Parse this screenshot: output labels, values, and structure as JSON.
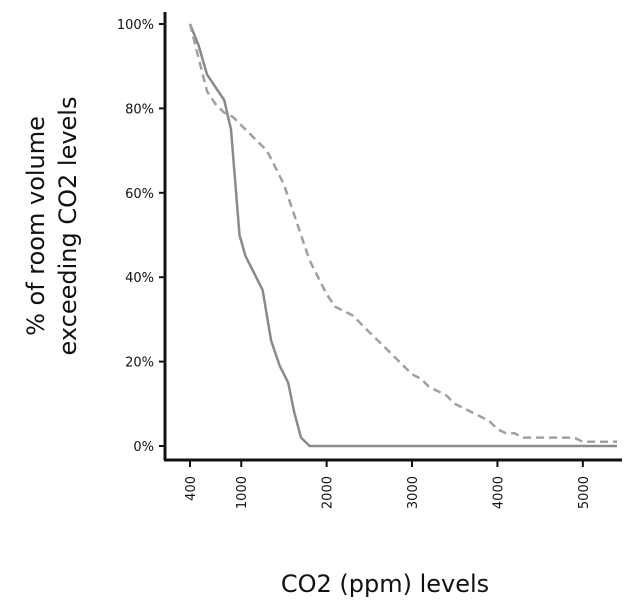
{
  "chart_data": {
    "type": "line",
    "title": "",
    "xlabel": "CO2 (ppm) levels",
    "ylabel_lines": [
      "% of room volume",
      "exceeding CO2 levels"
    ],
    "xlim": [
      400,
      5400
    ],
    "ylim": [
      0,
      100
    ],
    "x_ticks": [
      400,
      1000,
      2000,
      3000,
      4000,
      5000
    ],
    "x_tick_labels": [
      "400",
      "1000",
      "2000",
      "3000",
      "4000",
      "5000"
    ],
    "y_ticks": [
      0,
      20,
      40,
      60,
      80,
      100
    ],
    "y_tick_labels": [
      "0%",
      "20%",
      "40%",
      "60%",
      "80%",
      "100%"
    ],
    "grid": false,
    "series": [
      {
        "style": "solid",
        "color": "#8a8a8a",
        "points": [
          [
            400,
            100
          ],
          [
            500,
            95
          ],
          [
            600,
            88
          ],
          [
            700,
            85
          ],
          [
            800,
            82
          ],
          [
            880,
            75
          ],
          [
            920,
            65
          ],
          [
            980,
            50
          ],
          [
            1050,
            45
          ],
          [
            1150,
            41
          ],
          [
            1250,
            37
          ],
          [
            1350,
            25
          ],
          [
            1450,
            19
          ],
          [
            1550,
            15
          ],
          [
            1620,
            8
          ],
          [
            1700,
            2
          ],
          [
            1800,
            0
          ],
          [
            2000,
            0
          ],
          [
            3000,
            0
          ],
          [
            4000,
            0
          ],
          [
            5000,
            0
          ],
          [
            5400,
            0
          ]
        ]
      },
      {
        "style": "dashed",
        "color": "#a0a0a0",
        "points": [
          [
            400,
            100
          ],
          [
            500,
            92
          ],
          [
            600,
            84
          ],
          [
            700,
            81
          ],
          [
            800,
            79
          ],
          [
            900,
            78
          ],
          [
            1000,
            76
          ],
          [
            1100,
            74
          ],
          [
            1200,
            72
          ],
          [
            1300,
            70
          ],
          [
            1400,
            66
          ],
          [
            1500,
            62
          ],
          [
            1600,
            56
          ],
          [
            1700,
            50
          ],
          [
            1800,
            44
          ],
          [
            1900,
            40
          ],
          [
            2000,
            36
          ],
          [
            2100,
            33
          ],
          [
            2200,
            32
          ],
          [
            2300,
            31
          ],
          [
            2400,
            29
          ],
          [
            2500,
            27
          ],
          [
            2600,
            25
          ],
          [
            2700,
            23
          ],
          [
            2800,
            21
          ],
          [
            2900,
            19
          ],
          [
            3000,
            17
          ],
          [
            3100,
            16
          ],
          [
            3200,
            14
          ],
          [
            3300,
            13
          ],
          [
            3400,
            12
          ],
          [
            3500,
            10
          ],
          [
            3600,
            9
          ],
          [
            3700,
            8
          ],
          [
            3800,
            7
          ],
          [
            3900,
            6
          ],
          [
            4000,
            4
          ],
          [
            4100,
            3
          ],
          [
            4200,
            3
          ],
          [
            4300,
            2
          ],
          [
            4400,
            2
          ],
          [
            4500,
            2
          ],
          [
            4700,
            2
          ],
          [
            4900,
            2
          ],
          [
            5000,
            1
          ],
          [
            5200,
            1
          ],
          [
            5400,
            1
          ]
        ]
      }
    ]
  }
}
